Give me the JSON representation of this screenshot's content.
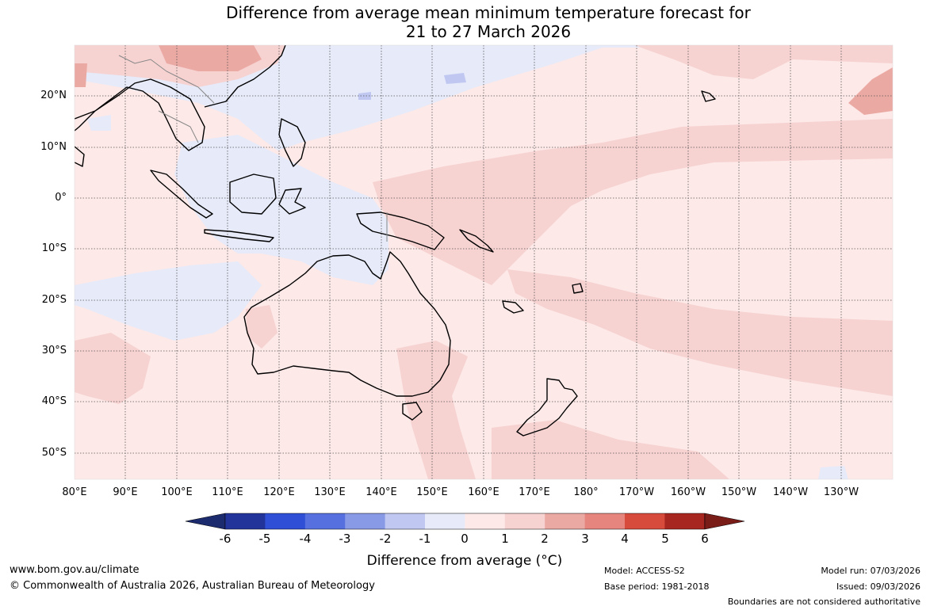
{
  "title": {
    "line1": "Difference from average mean minimum temperature forecast for",
    "line2": "21 to 27 March 2026"
  },
  "map": {
    "lat_labels": [
      "20°N",
      "10°N",
      "0°",
      "10°S",
      "20°S",
      "30°S",
      "40°S",
      "50°S"
    ],
    "lon_labels": [
      "80°E",
      "90°E",
      "100°E",
      "110°E",
      "120°E",
      "130°E",
      "140°E",
      "150°E",
      "160°E",
      "170°E",
      "180°",
      "170°W",
      "160°W",
      "150°W",
      "140°W",
      "130°W"
    ],
    "extent": {
      "lon": [
        80,
        240
      ],
      "lat": [
        -55,
        30
      ]
    }
  },
  "colorbar": {
    "ticks": [
      "-6",
      "-5",
      "-4",
      "-3",
      "-2",
      "-1",
      "0",
      "1",
      "2",
      "3",
      "4",
      "5",
      "6"
    ],
    "colors": [
      "#22349a",
      "#2e4fd6",
      "#5670e0",
      "#8899e6",
      "#c0c8f2",
      "#e6eaf9",
      "#fde9e8",
      "#f6d2d1",
      "#eba9a4",
      "#e5857e",
      "#d74b3c",
      "#a82620"
    ],
    "under_color": "#1c2a6e",
    "over_color": "#7a1c18",
    "title": "Difference from average (°C)"
  },
  "footer": {
    "website": "www.bom.gov.au/climate",
    "copyright": "© Commonwealth of Australia 2026, Australian Bureau of Meteorology",
    "model": "Model: ACCESS-S2",
    "base_period": "Base period: 1981-2018",
    "model_run": "Model run: 07/03/2026",
    "issued": "Issued: 09/03/2026",
    "disclaimer": "Boundaries are not considered authoritative"
  }
}
